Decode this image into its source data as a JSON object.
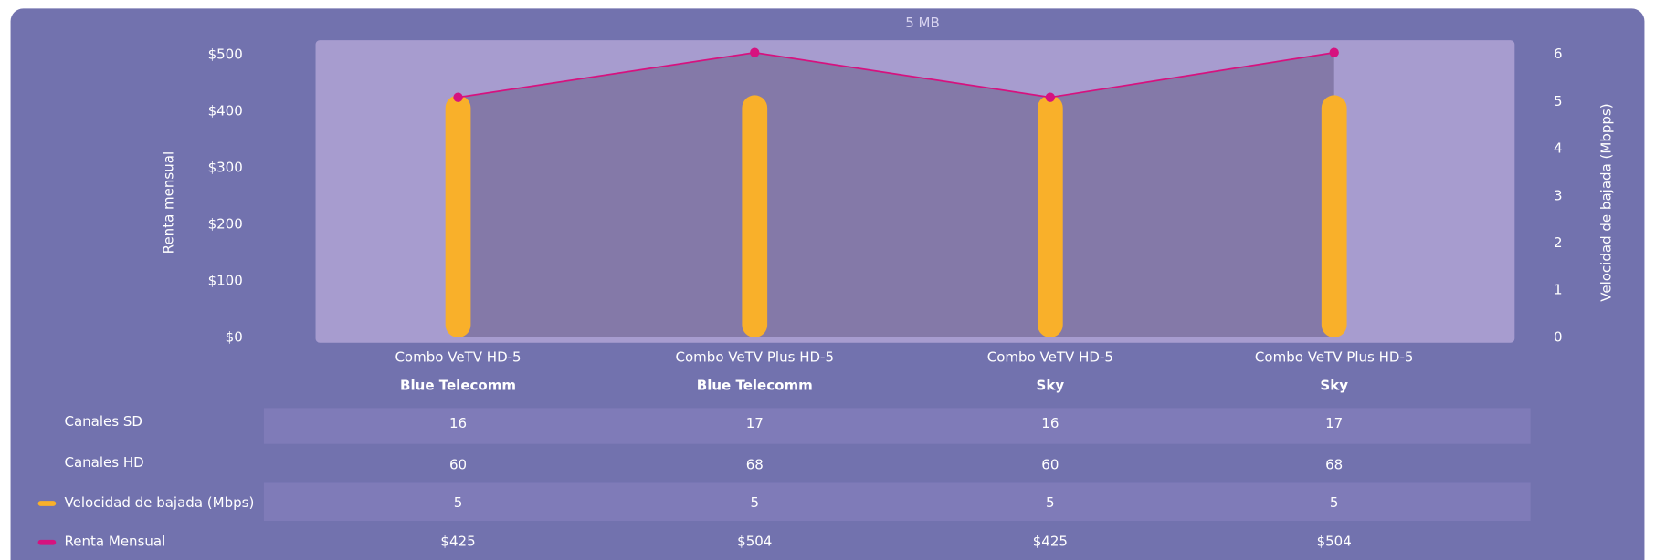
{
  "chart_data": {
    "type": "combo",
    "title": "5 MB",
    "ylabel": "Renta mensual",
    "y2label": "Velocidad de bajada (Mbpps)",
    "categories": [
      "Combo VeTV HD-5",
      "Combo VeTV Plus HD-5",
      "Combo VeTV HD-5",
      "Combo VeTV Plus HD-5"
    ],
    "providers": [
      "Blue Telecomm",
      "Blue Telecomm",
      "Sky",
      "Sky"
    ],
    "ylim": [
      0,
      526
    ],
    "yticks": [
      {
        "value": 0,
        "label": "$0"
      },
      {
        "value": 100,
        "label": "$100"
      },
      {
        "value": 200,
        "label": "$200"
      },
      {
        "value": 300,
        "label": "$300"
      },
      {
        "value": 400,
        "label": "$400"
      },
      {
        "value": 500,
        "label": "$500"
      }
    ],
    "y2lim": [
      0,
      6.3
    ],
    "y2ticks": [
      0,
      1,
      2,
      3,
      4,
      5,
      6
    ],
    "table_rows": [
      {
        "name": "Canales SD",
        "values": [
          16,
          17,
          16,
          17
        ]
      },
      {
        "name": "Canales HD",
        "values": [
          60,
          68,
          60,
          68
        ]
      }
    ],
    "series": [
      {
        "name": "Velocidad de bajada (Mbps)",
        "type": "bar",
        "axis": "y2",
        "color": "#f9b02a",
        "values": [
          5,
          5,
          5,
          5
        ]
      },
      {
        "name": "Renta Mensual",
        "type": "line",
        "axis": "y",
        "color": "#d6127f",
        "values": [
          425,
          504,
          425,
          504
        ],
        "value_labels": [
          "$425",
          "$504",
          "$425",
          "$504"
        ]
      }
    ]
  }
}
